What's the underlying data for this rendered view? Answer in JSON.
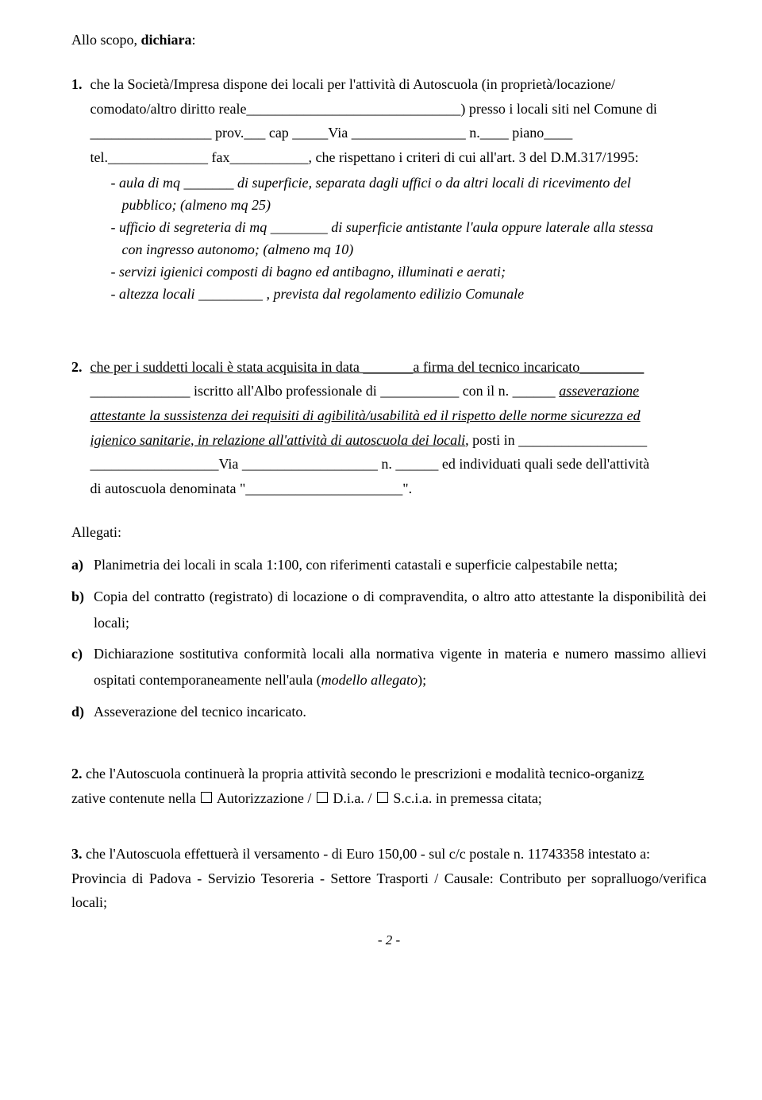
{
  "intro": {
    "prefix": "Allo scopo, ",
    "bold": "dichiara",
    "suffix": ":"
  },
  "item1": {
    "num": "1.",
    "line1_a": "che la Società/Impresa dispone dei locali per l'attività di Autoscuola (in proprietà/locazione/",
    "line2_a": "comodato/altro diritto reale______________________________) presso i locali siti nel Comune di",
    "line3": "_________________ prov.___ cap _____Via ________________ n.____ piano____",
    "line4": "tel.______________ fax___________, che rispettano i criteri di cui all'art. 3 del D.M.317/1995:",
    "b1a": "- aula di mq _______  di superficie, separata  dagli  uffici o da  altri locali di ricevimento del",
    "b1b": "pubblico; (almeno mq 25)",
    "b2a": "- ufficio di segreteria di mq ________  di superficie antistante l'aula oppure laterale alla stessa",
    "b2b": "con ingresso autonomo; (almeno mq 10)",
    "b3": "-  servizi igienici composti di bagno ed antibagno, illuminati e aerati;",
    "b4": "-  altezza locali _________ , prevista dal regolamento edilizio Comunale"
  },
  "item2": {
    "num": "2.",
    "l1a": "che per i suddetti locali è stata acquisita in data _______",
    "l1b": "a firma del tecnico incaricato",
    "l2a": "______________ iscritto all'Albo professionale di ___________ con il n. ______ ",
    "l2b": "asseverazione",
    "l3": "attestante la sussistenza dei requisiti di agibilità/usabilità ed il rispetto delle norme sicurezza ed ",
    "l4": "igienico sanitarie, in relazione all'attività di autoscuola dei locali",
    "l4b": ", posti in __________________",
    "l5": "__________________Via ___________________ n. ______ ed individuati quali sede dell'attività",
    "l6": "di autoscuola denominata \"______________________\"."
  },
  "allegati": {
    "head": "Allegati:",
    "a_lbl": "a)",
    "a_txt": "Planimetria dei locali in scala 1:100, con riferimenti catastali e superficie calpestabile netta;",
    "b_lbl": "b)",
    "b_txt": "Copia del contratto (registrato) di locazione o di compravendita, o altro atto attestante la disponibilità dei locali;",
    "c_lbl": "c)",
    "c_txt_a": "Dichiarazione sostitutiva conformità locali alla normativa vigente in materia e numero massimo allievi ospitati contemporaneamente nell'aula (",
    "c_txt_i": "modello allegato",
    "c_txt_b": ");",
    "d_lbl": "d)",
    "d_txt": "Asseverazione del tecnico incaricato."
  },
  "item2b": {
    "num": "2.",
    "l1": "che l'Autoscuola continuerà la propria attività secondo le prescrizioni e modalità tecnico-organiz",
    "l2a": "zative contenute nella ",
    "opt1": " Autorizzazione / ",
    "opt2": " D.i.a. / ",
    "opt3": " S.c.i.a. in premessa citata;"
  },
  "item3": {
    "num": "3.",
    "l1": "che  l'Autoscuola effettuerà il versamento - di Euro 150,00 - sul c/c postale n. 11743358  intestato a:",
    "l2": "Provincia di Padova - Servizio Tesoreria - Settore Trasporti / Causale: Contributo per sopralluogo/verifica locali;"
  },
  "footer": {
    "page": "- 2 -"
  }
}
